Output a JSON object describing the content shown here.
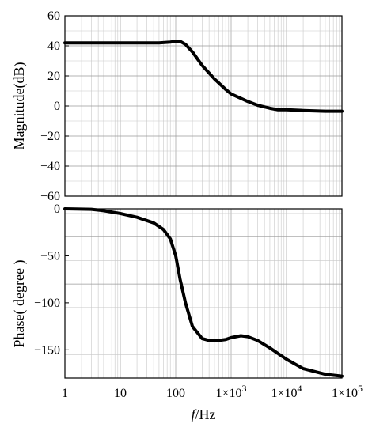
{
  "chart_data": [
    {
      "type": "line",
      "ylabel": "Magnitude(dB)",
      "xscale": "log",
      "xlim": [
        1,
        100000
      ],
      "ylim": [
        -60,
        60
      ],
      "yticks": [
        "60",
        "40",
        "20",
        "0",
        "−20",
        "−40",
        "−60"
      ],
      "ytick_values": [
        60,
        40,
        20,
        0,
        -20,
        -40,
        -60
      ],
      "grid": true,
      "series": [
        {
          "x": [
            1,
            10,
            50,
            80,
            100,
            120,
            150,
            200,
            300,
            500,
            800,
            1000,
            2000,
            3000,
            5000,
            7000,
            10000,
            20000,
            50000,
            100000
          ],
          "y": [
            42,
            42,
            42,
            42.5,
            43,
            43,
            41,
            36,
            27,
            18,
            11,
            8,
            3,
            0.5,
            -1.5,
            -2.5,
            -2.5,
            -3,
            -3.5,
            -3.5
          ]
        }
      ]
    },
    {
      "type": "line",
      "ylabel": "Phase( degree )",
      "xlabel_italic": "f",
      "xlabel_rest": "/Hz",
      "xscale": "log",
      "xlim": [
        1,
        100000
      ],
      "ylim": [
        -180,
        0
      ],
      "yticks": [
        "0",
        "−50",
        "−100",
        "−150"
      ],
      "ytick_values": [
        0,
        -50,
        -100,
        -150
      ],
      "xticks": [
        {
          "value": 1,
          "label": "1"
        },
        {
          "value": 10,
          "label": "10"
        },
        {
          "value": 100,
          "label": "100"
        },
        {
          "value": 1000,
          "base": "1×10",
          "exp": "3"
        },
        {
          "value": 10000,
          "base": "1×10",
          "exp": "4"
        },
        {
          "value": 100000,
          "base": "1×10",
          "exp": "5"
        }
      ],
      "grid": true,
      "series": [
        {
          "x": [
            1,
            3,
            5,
            10,
            20,
            40,
            60,
            80,
            100,
            120,
            150,
            200,
            300,
            400,
            600,
            800,
            1000,
            1500,
            2000,
            3000,
            5000,
            10000,
            20000,
            50000,
            100000
          ],
          "y": [
            0,
            -0.5,
            -2,
            -5,
            -9,
            -15,
            -22,
            -32,
            -50,
            -75,
            -100,
            -125,
            -138,
            -140,
            -140,
            -139,
            -137,
            -135,
            -136,
            -140,
            -148,
            -160,
            -170,
            -176,
            -178
          ]
        }
      ]
    }
  ]
}
